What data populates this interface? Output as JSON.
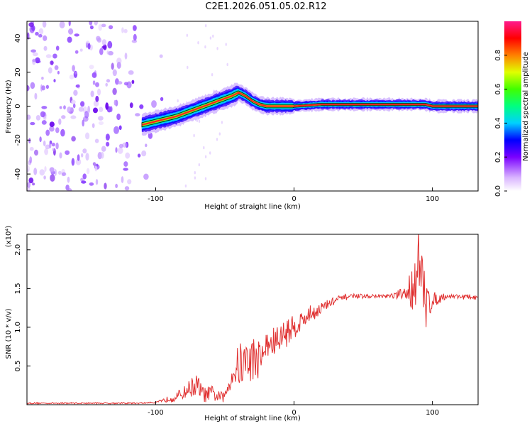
{
  "title": "C2E1.2026.051.05.02.R12",
  "chart_data": [
    {
      "type": "heatmap",
      "name": "spectrogram",
      "xlabel": "Height of straight line (km)",
      "ylabel": "Frequency (Hz)",
      "xlim": [
        -193,
        133
      ],
      "ylim": [
        -50,
        50
      ],
      "xticks": [
        -100,
        0,
        100
      ],
      "xtick_labels": [
        "-100",
        "0",
        "100"
      ],
      "yticks": [
        -40,
        -20,
        0,
        20,
        40
      ],
      "ytick_labels": [
        "-40",
        "-20",
        "0",
        "20",
        "40"
      ],
      "ridge": {
        "x": [
          -110,
          -105,
          -95,
          -85,
          -75,
          -65,
          -55,
          -45,
          -40,
          -35,
          -30,
          -25,
          -20,
          -10,
          0,
          20,
          40,
          60,
          80,
          95,
          100,
          133
        ],
        "y": [
          -11,
          -10,
          -8,
          -6,
          -3,
          0,
          3,
          6,
          8,
          6,
          3,
          1,
          0,
          0,
          0,
          1,
          1,
          1,
          1,
          1,
          0,
          0
        ]
      },
      "colorbar": {
        "label": "Normalized spectral amplitude",
        "range": [
          0,
          1
        ],
        "ticks": [
          0.0,
          0.2,
          0.4,
          0.6,
          0.8
        ],
        "tick_labels": [
          "0.0",
          "0.2",
          "0.4",
          "0.6",
          "0.8"
        ]
      }
    },
    {
      "type": "line",
      "name": "snr",
      "xlabel": "Height of straight line (km)",
      "ylabel": "SNR (10 * v/v)",
      "y_multiplier": "(x10⁴)",
      "xlim": [
        -193,
        133
      ],
      "ylim": [
        0,
        2.2
      ],
      "xticks": [
        -100,
        0,
        100
      ],
      "xtick_labels": [
        "-100",
        "0",
        "100"
      ],
      "yticks": [
        0.5,
        1.0,
        1.5,
        2.0
      ],
      "ytick_labels": [
        "0.5",
        "1.0",
        "1.5",
        "2.0"
      ],
      "color": "#e03030",
      "x": [
        -193,
        -110,
        -100,
        -95,
        -90,
        -85,
        -80,
        -75,
        -70,
        -65,
        -60,
        -55,
        -50,
        -45,
        -40,
        -35,
        -30,
        -25,
        -20,
        -15,
        -10,
        -5,
        0,
        10,
        20,
        30,
        40,
        50,
        60,
        70,
        80,
        85,
        88,
        90,
        92,
        95,
        100,
        110,
        120,
        133
      ],
      "y": [
        0.02,
        0.02,
        0.03,
        0.05,
        0.08,
        0.1,
        0.15,
        0.22,
        0.25,
        0.12,
        0.15,
        0.1,
        0.1,
        0.4,
        0.5,
        0.55,
        0.6,
        0.6,
        0.75,
        0.8,
        0.85,
        0.95,
        1.0,
        1.15,
        1.25,
        1.35,
        1.4,
        1.4,
        1.4,
        1.4,
        1.42,
        1.5,
        1.7,
        1.8,
        1.6,
        1.3,
        1.35,
        1.4,
        1.4,
        1.38
      ],
      "noise": [
        0,
        0,
        0,
        0.02,
        0.04,
        0.06,
        0.08,
        0.12,
        0.15,
        0.1,
        0.1,
        0.08,
        0.06,
        0.2,
        0.3,
        0.3,
        0.3,
        0.25,
        0.2,
        0.2,
        0.2,
        0.2,
        0.15,
        0.12,
        0.08,
        0.05,
        0.03,
        0.02,
        0.02,
        0.03,
        0.1,
        0.3,
        0.45,
        0.5,
        0.45,
        0.35,
        0.1,
        0.03,
        0.03,
        0.03
      ]
    }
  ]
}
